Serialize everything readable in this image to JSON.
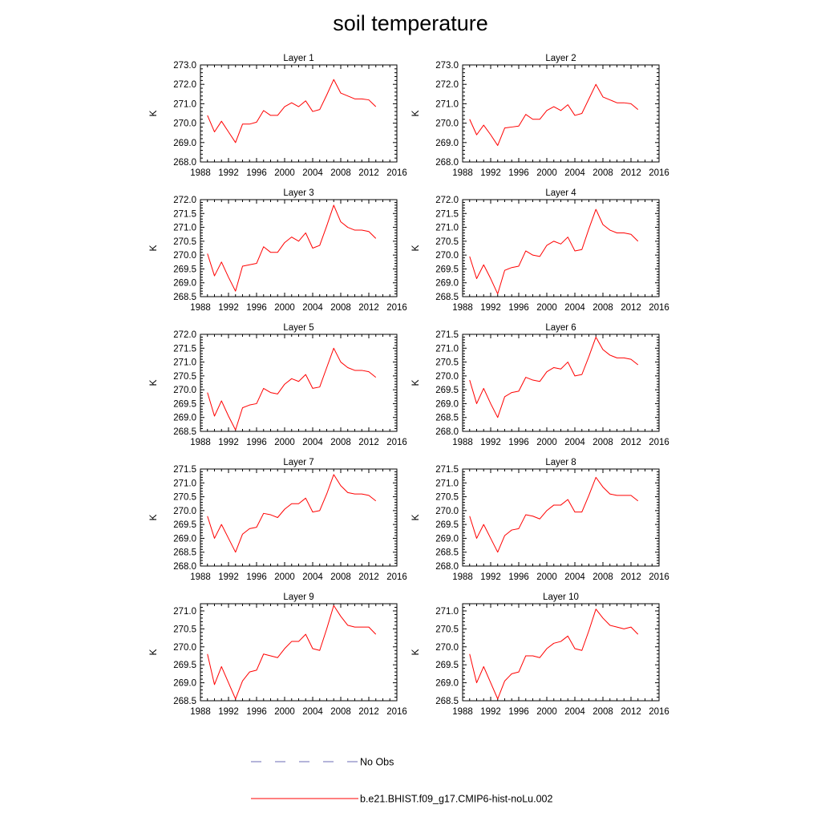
{
  "figure": {
    "title": "soil temperature"
  },
  "legend": [
    {
      "label": "No Obs",
      "color": "#6b6bb5",
      "dash": true
    },
    {
      "label": "b.e21.BHIST.f09_g17.CMIP6-hist-noLu.002",
      "color": "#ff0000",
      "dash": false
    }
  ],
  "chart_data": [
    {
      "type": "line",
      "title": "Layer 1",
      "ylabel": "K",
      "xlim": [
        1988,
        2016
      ],
      "xticks": [
        "1988",
        "1992",
        "1996",
        "2000",
        "2004",
        "2008",
        "2012",
        "2016"
      ],
      "ylim": [
        268.0,
        273.0
      ],
      "yticks": [
        "268.0",
        "269.0",
        "270.0",
        "271.0",
        "272.0",
        "273.0"
      ],
      "x": [
        1989,
        1990,
        1991,
        1992,
        1993,
        1994,
        1995,
        1996,
        1997,
        1998,
        1999,
        2000,
        2001,
        2002,
        2003,
        2004,
        2005,
        2006,
        2007,
        2008,
        2009,
        2010,
        2011,
        2012,
        2013
      ],
      "series": [
        {
          "name": "b.e21.BHIST.f09_g17.CMIP6-hist-noLu.002",
          "color": "#ff0000",
          "values": [
            270.4,
            269.55,
            270.1,
            269.55,
            269.0,
            269.95,
            269.95,
            270.05,
            270.65,
            270.4,
            270.4,
            270.85,
            271.05,
            270.85,
            271.15,
            270.6,
            270.7,
            271.45,
            272.25,
            271.55,
            271.4,
            271.25,
            271.25,
            271.2,
            270.85
          ]
        }
      ]
    },
    {
      "type": "line",
      "title": "Layer 2",
      "ylabel": "K",
      "xlim": [
        1988,
        2016
      ],
      "xticks": [
        "1988",
        "1992",
        "1996",
        "2000",
        "2004",
        "2008",
        "2012",
        "2016"
      ],
      "ylim": [
        268.0,
        273.0
      ],
      "yticks": [
        "268.0",
        "269.0",
        "270.0",
        "271.0",
        "272.0",
        "273.0"
      ],
      "x": [
        1989,
        1990,
        1991,
        1992,
        1993,
        1994,
        1995,
        1996,
        1997,
        1998,
        1999,
        2000,
        2001,
        2002,
        2003,
        2004,
        2005,
        2006,
        2007,
        2008,
        2009,
        2010,
        2011,
        2012,
        2013
      ],
      "series": [
        {
          "name": "b.e21.BHIST.f09_g17.CMIP6-hist-noLu.002",
          "color": "#ff0000",
          "values": [
            270.2,
            269.4,
            269.9,
            269.4,
            268.85,
            269.75,
            269.8,
            269.85,
            270.45,
            270.2,
            270.2,
            270.65,
            270.85,
            270.65,
            270.95,
            270.4,
            270.5,
            271.25,
            272.0,
            271.35,
            271.2,
            271.05,
            271.05,
            271.0,
            270.7
          ]
        }
      ]
    },
    {
      "type": "line",
      "title": "Layer 3",
      "ylabel": "K",
      "xlim": [
        1988,
        2016
      ],
      "xticks": [
        "1988",
        "1992",
        "1996",
        "2000",
        "2004",
        "2008",
        "2012",
        "2016"
      ],
      "ylim": [
        268.5,
        272.0
      ],
      "yticks": [
        "268.5",
        "269.0",
        "269.5",
        "270.0",
        "270.5",
        "271.0",
        "271.5",
        "272.0"
      ],
      "x": [
        1989,
        1990,
        1991,
        1992,
        1993,
        1994,
        1995,
        1996,
        1997,
        1998,
        1999,
        2000,
        2001,
        2002,
        2003,
        2004,
        2005,
        2006,
        2007,
        2008,
        2009,
        2010,
        2011,
        2012,
        2013
      ],
      "series": [
        {
          "name": "b.e21.BHIST.f09_g17.CMIP6-hist-noLu.002",
          "color": "#ff0000",
          "values": [
            270.05,
            269.25,
            269.75,
            269.2,
            268.7,
            269.6,
            269.65,
            269.7,
            270.3,
            270.1,
            270.1,
            270.45,
            270.65,
            270.5,
            270.8,
            270.25,
            270.35,
            271.05,
            271.8,
            271.2,
            271.0,
            270.9,
            270.9,
            270.85,
            270.6
          ]
        }
      ]
    },
    {
      "type": "line",
      "title": "Layer 4",
      "ylabel": "K",
      "xlim": [
        1988,
        2016
      ],
      "xticks": [
        "1988",
        "1992",
        "1996",
        "2000",
        "2004",
        "2008",
        "2012",
        "2016"
      ],
      "ylim": [
        268.5,
        272.0
      ],
      "yticks": [
        "268.5",
        "269.0",
        "269.5",
        "270.0",
        "270.5",
        "271.0",
        "271.5",
        "272.0"
      ],
      "x": [
        1989,
        1990,
        1991,
        1992,
        1993,
        1994,
        1995,
        1996,
        1997,
        1998,
        1999,
        2000,
        2001,
        2002,
        2003,
        2004,
        2005,
        2006,
        2007,
        2008,
        2009,
        2010,
        2011,
        2012,
        2013
      ],
      "series": [
        {
          "name": "b.e21.BHIST.f09_g17.CMIP6-hist-noLu.002",
          "color": "#ff0000",
          "values": [
            269.95,
            269.15,
            269.65,
            269.15,
            268.6,
            269.45,
            269.55,
            269.6,
            270.15,
            270.0,
            269.95,
            270.35,
            270.5,
            270.4,
            270.65,
            270.15,
            270.2,
            270.95,
            271.65,
            271.1,
            270.9,
            270.8,
            270.8,
            270.75,
            270.5
          ]
        }
      ]
    },
    {
      "type": "line",
      "title": "Layer 5",
      "ylabel": "K",
      "xlim": [
        1988,
        2016
      ],
      "xticks": [
        "1988",
        "1992",
        "1996",
        "2000",
        "2004",
        "2008",
        "2012",
        "2016"
      ],
      "ylim": [
        268.5,
        272.0
      ],
      "yticks": [
        "268.5",
        "269.0",
        "269.5",
        "270.0",
        "270.5",
        "271.0",
        "271.5",
        "272.0"
      ],
      "x": [
        1989,
        1990,
        1991,
        1992,
        1993,
        1994,
        1995,
        1996,
        1997,
        1998,
        1999,
        2000,
        2001,
        2002,
        2003,
        2004,
        2005,
        2006,
        2007,
        2008,
        2009,
        2010,
        2011,
        2012,
        2013
      ],
      "series": [
        {
          "name": "b.e21.BHIST.f09_g17.CMIP6-hist-noLu.002",
          "color": "#ff0000",
          "values": [
            269.9,
            269.05,
            269.6,
            269.05,
            268.55,
            269.35,
            269.45,
            269.5,
            270.05,
            269.9,
            269.85,
            270.2,
            270.4,
            270.3,
            270.55,
            270.05,
            270.1,
            270.8,
            271.5,
            271.0,
            270.8,
            270.7,
            270.7,
            270.65,
            270.45
          ]
        }
      ]
    },
    {
      "type": "line",
      "title": "Layer 6",
      "ylabel": "K",
      "xlim": [
        1988,
        2016
      ],
      "xticks": [
        "1988",
        "1992",
        "1996",
        "2000",
        "2004",
        "2008",
        "2012",
        "2016"
      ],
      "ylim": [
        268.0,
        271.5
      ],
      "yticks": [
        "268.0",
        "268.5",
        "269.0",
        "269.5",
        "270.0",
        "270.5",
        "271.0",
        "271.5"
      ],
      "x": [
        1989,
        1990,
        1991,
        1992,
        1993,
        1994,
        1995,
        1996,
        1997,
        1998,
        1999,
        2000,
        2001,
        2002,
        2003,
        2004,
        2005,
        2006,
        2007,
        2008,
        2009,
        2010,
        2011,
        2012,
        2013
      ],
      "series": [
        {
          "name": "b.e21.BHIST.f09_g17.CMIP6-hist-noLu.002",
          "color": "#ff0000",
          "values": [
            269.85,
            269.0,
            269.55,
            269.0,
            268.5,
            269.25,
            269.4,
            269.45,
            269.95,
            269.85,
            269.8,
            270.15,
            270.3,
            270.25,
            270.5,
            270.0,
            270.05,
            270.7,
            271.4,
            270.95,
            270.75,
            270.65,
            270.65,
            270.6,
            270.4
          ]
        }
      ]
    },
    {
      "type": "line",
      "title": "Layer 7",
      "ylabel": "K",
      "xlim": [
        1988,
        2016
      ],
      "xticks": [
        "1988",
        "1992",
        "1996",
        "2000",
        "2004",
        "2008",
        "2012",
        "2016"
      ],
      "ylim": [
        268.0,
        271.5
      ],
      "yticks": [
        "268.0",
        "268.5",
        "269.0",
        "269.5",
        "270.0",
        "270.5",
        "271.0",
        "271.5"
      ],
      "x": [
        1989,
        1990,
        1991,
        1992,
        1993,
        1994,
        1995,
        1996,
        1997,
        1998,
        1999,
        2000,
        2001,
        2002,
        2003,
        2004,
        2005,
        2006,
        2007,
        2008,
        2009,
        2010,
        2011,
        2012,
        2013
      ],
      "series": [
        {
          "name": "b.e21.BHIST.f09_g17.CMIP6-hist-noLu.002",
          "color": "#ff0000",
          "values": [
            269.8,
            269.0,
            269.5,
            269.0,
            268.5,
            269.15,
            269.35,
            269.4,
            269.9,
            269.85,
            269.75,
            270.05,
            270.25,
            270.25,
            270.45,
            269.95,
            270.0,
            270.6,
            271.3,
            270.9,
            270.65,
            270.6,
            270.6,
            270.55,
            270.35
          ]
        }
      ]
    },
    {
      "type": "line",
      "title": "Layer 8",
      "ylabel": "K",
      "xlim": [
        1988,
        2016
      ],
      "xticks": [
        "1988",
        "1992",
        "1996",
        "2000",
        "2004",
        "2008",
        "2012",
        "2016"
      ],
      "ylim": [
        268.0,
        271.5
      ],
      "yticks": [
        "268.0",
        "268.5",
        "269.0",
        "269.5",
        "270.0",
        "270.5",
        "271.0",
        "271.5"
      ],
      "x": [
        1989,
        1990,
        1991,
        1992,
        1993,
        1994,
        1995,
        1996,
        1997,
        1998,
        1999,
        2000,
        2001,
        2002,
        2003,
        2004,
        2005,
        2006,
        2007,
        2008,
        2009,
        2010,
        2011,
        2012,
        2013
      ],
      "series": [
        {
          "name": "b.e21.BHIST.f09_g17.CMIP6-hist-noLu.002",
          "color": "#ff0000",
          "values": [
            269.8,
            269.0,
            269.5,
            269.0,
            268.5,
            269.1,
            269.3,
            269.35,
            269.85,
            269.8,
            269.7,
            270.0,
            270.2,
            270.2,
            270.4,
            269.95,
            269.95,
            270.55,
            271.2,
            270.85,
            270.6,
            270.55,
            270.55,
            270.55,
            270.35
          ]
        }
      ]
    },
    {
      "type": "line",
      "title": "Layer 9",
      "ylabel": "K",
      "xlim": [
        1988,
        2016
      ],
      "xticks": [
        "1988",
        "1992",
        "1996",
        "2000",
        "2004",
        "2008",
        "2012",
        "2016"
      ],
      "ylim": [
        268.5,
        271.2
      ],
      "yticks": [
        "268.5",
        "269.0",
        "269.5",
        "270.0",
        "270.5",
        "271.0"
      ],
      "x": [
        1989,
        1990,
        1991,
        1992,
        1993,
        1994,
        1995,
        1996,
        1997,
        1998,
        1999,
        2000,
        2001,
        2002,
        2003,
        2004,
        2005,
        2006,
        2007,
        2008,
        2009,
        2010,
        2011,
        2012,
        2013
      ],
      "series": [
        {
          "name": "b.e21.BHIST.f09_g17.CMIP6-hist-noLu.002",
          "color": "#ff0000",
          "values": [
            269.8,
            268.95,
            269.45,
            269.0,
            268.55,
            269.05,
            269.3,
            269.35,
            269.8,
            269.75,
            269.7,
            269.95,
            270.15,
            270.15,
            270.35,
            269.95,
            269.9,
            270.5,
            271.15,
            270.85,
            270.6,
            270.55,
            270.55,
            270.55,
            270.35
          ]
        }
      ]
    },
    {
      "type": "line",
      "title": "Layer 10",
      "ylabel": "K",
      "xlim": [
        1988,
        2016
      ],
      "xticks": [
        "1988",
        "1992",
        "1996",
        "2000",
        "2004",
        "2008",
        "2012",
        "2016"
      ],
      "ylim": [
        268.5,
        271.2
      ],
      "yticks": [
        "268.5",
        "269.0",
        "269.5",
        "270.0",
        "270.5",
        "271.0"
      ],
      "x": [
        1989,
        1990,
        1991,
        1992,
        1993,
        1994,
        1995,
        1996,
        1997,
        1998,
        1999,
        2000,
        2001,
        2002,
        2003,
        2004,
        2005,
        2006,
        2007,
        2008,
        2009,
        2010,
        2011,
        2012,
        2013
      ],
      "series": [
        {
          "name": "b.e21.BHIST.f09_g17.CMIP6-hist-noLu.002",
          "color": "#ff0000",
          "values": [
            269.8,
            269.0,
            269.45,
            269.0,
            268.55,
            269.05,
            269.25,
            269.3,
            269.75,
            269.75,
            269.7,
            269.95,
            270.1,
            270.15,
            270.3,
            269.95,
            269.9,
            270.45,
            271.05,
            270.8,
            270.6,
            270.55,
            270.5,
            270.55,
            270.35
          ]
        }
      ]
    }
  ]
}
